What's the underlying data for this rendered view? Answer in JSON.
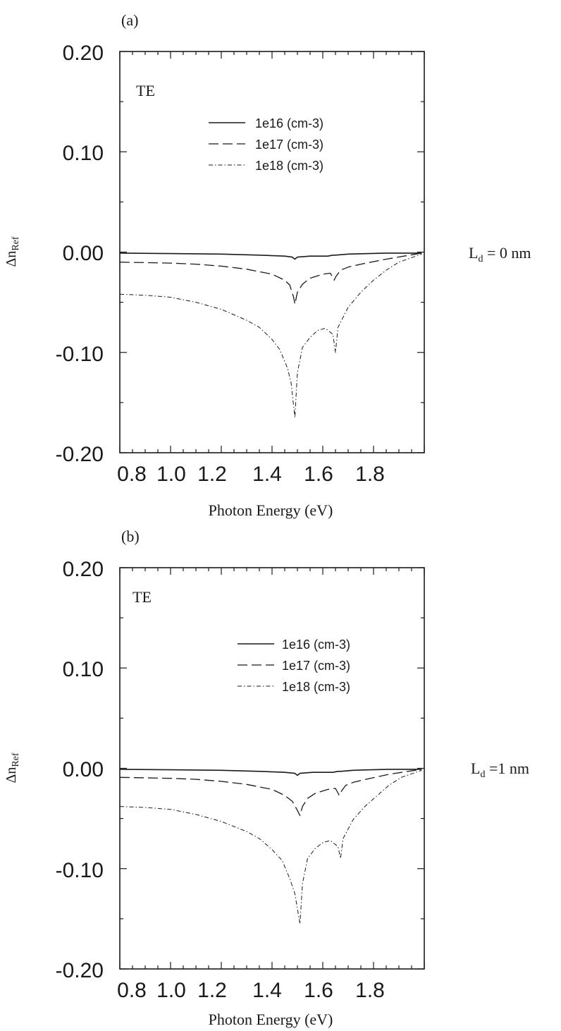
{
  "colors": {
    "ink": "#1a1a1a",
    "background": "#ffffff"
  },
  "chart_data": [
    {
      "type": "line",
      "panel_label": "(a)",
      "annotation": "TE",
      "side_label": {
        "main": "L",
        "sub": "d",
        "rest": " = 0 nm"
      },
      "xlabel": "Photon Energy (eV)",
      "ylabel": {
        "main": "Δn",
        "sub": "Ref"
      },
      "xlim": [
        0.8,
        2.0
      ],
      "ylim": [
        -0.2,
        0.2
      ],
      "x_ticks": [
        "0.8",
        "1.0",
        "1.2",
        "1.4",
        "1.6",
        "1.8"
      ],
      "y_ticks": [
        "0.20",
        "0.10",
        "0.00",
        "-0.10",
        "-0.20"
      ],
      "grid": false,
      "legend_position": "upper-middle",
      "series": [
        {
          "name": "1e16 (cm-3)",
          "style": "solid",
          "x": [
            0.8,
            1.0,
            1.2,
            1.35,
            1.45,
            1.48,
            1.49,
            1.5,
            1.55,
            1.62,
            1.64,
            1.65,
            1.7,
            1.85,
            1.99
          ],
          "y": [
            -0.001,
            -0.0015,
            -0.002,
            -0.003,
            -0.004,
            -0.005,
            -0.007,
            -0.005,
            -0.004,
            -0.004,
            -0.003,
            -0.003,
            -0.002,
            -0.001,
            -0.001
          ]
        },
        {
          "name": "1e17 (cm-3)",
          "style": "dash",
          "x": [
            0.8,
            1.0,
            1.1,
            1.2,
            1.3,
            1.4,
            1.45,
            1.47,
            1.485,
            1.49,
            1.5,
            1.52,
            1.55,
            1.6,
            1.63,
            1.645,
            1.65,
            1.67,
            1.7,
            1.75,
            1.85,
            1.99
          ],
          "y": [
            -0.01,
            -0.011,
            -0.012,
            -0.014,
            -0.017,
            -0.022,
            -0.028,
            -0.033,
            -0.045,
            -0.052,
            -0.04,
            -0.032,
            -0.026,
            -0.022,
            -0.021,
            -0.028,
            -0.025,
            -0.018,
            -0.015,
            -0.012,
            -0.007,
            -0.001
          ]
        },
        {
          "name": "1e18 (cm-3)",
          "style": "dashdot",
          "x": [
            0.8,
            0.9,
            1.0,
            1.1,
            1.2,
            1.3,
            1.35,
            1.4,
            1.43,
            1.46,
            1.475,
            1.49,
            1.5,
            1.52,
            1.55,
            1.58,
            1.61,
            1.64,
            1.65,
            1.66,
            1.7,
            1.75,
            1.8,
            1.85,
            1.9,
            1.99
          ],
          "y": [
            -0.042,
            -0.043,
            -0.045,
            -0.05,
            -0.057,
            -0.068,
            -0.075,
            -0.087,
            -0.097,
            -0.115,
            -0.13,
            -0.165,
            -0.12,
            -0.095,
            -0.085,
            -0.078,
            -0.076,
            -0.082,
            -0.1,
            -0.075,
            -0.055,
            -0.04,
            -0.028,
            -0.018,
            -0.01,
            -0.002
          ]
        }
      ]
    },
    {
      "type": "line",
      "panel_label": "(b)",
      "annotation": "TE",
      "side_label": {
        "main": "L",
        "sub": "d",
        "rest": " =1 nm"
      },
      "xlabel": "Photon Energy (eV)",
      "ylabel": {
        "main": "Δn",
        "sub": "Ref"
      },
      "xlim": [
        0.8,
        2.0
      ],
      "ylim": [
        -0.2,
        0.2
      ],
      "x_ticks": [
        "0.8",
        "1.0",
        "1.2",
        "1.4",
        "1.6",
        "1.8"
      ],
      "y_ticks": [
        "0.20",
        "0.10",
        "0.00",
        "-0.10",
        "-0.20"
      ],
      "grid": false,
      "legend_position": "upper-right",
      "series": [
        {
          "name": "1e16 (cm-3)",
          "style": "solid",
          "x": [
            0.8,
            1.0,
            1.2,
            1.35,
            1.45,
            1.49,
            1.5,
            1.51,
            1.56,
            1.64,
            1.66,
            1.67,
            1.72,
            1.86,
            1.99
          ],
          "y": [
            -0.001,
            -0.0015,
            -0.002,
            -0.003,
            -0.004,
            -0.005,
            -0.007,
            -0.005,
            -0.004,
            -0.004,
            -0.003,
            -0.003,
            -0.002,
            -0.001,
            -0.001
          ]
        },
        {
          "name": "1e17 (cm-3)",
          "style": "dash",
          "x": [
            0.8,
            1.0,
            1.1,
            1.2,
            1.3,
            1.4,
            1.45,
            1.48,
            1.5,
            1.51,
            1.52,
            1.54,
            1.57,
            1.62,
            1.65,
            1.665,
            1.67,
            1.69,
            1.72,
            1.77,
            1.86,
            1.99
          ],
          "y": [
            -0.009,
            -0.01,
            -0.011,
            -0.013,
            -0.016,
            -0.021,
            -0.027,
            -0.033,
            -0.042,
            -0.047,
            -0.038,
            -0.03,
            -0.025,
            -0.021,
            -0.02,
            -0.027,
            -0.024,
            -0.017,
            -0.014,
            -0.011,
            -0.006,
            -0.001
          ]
        },
        {
          "name": "1e18 (cm-3)",
          "style": "dashdot",
          "x": [
            0.8,
            0.9,
            1.0,
            1.1,
            1.2,
            1.3,
            1.35,
            1.4,
            1.44,
            1.47,
            1.49,
            1.51,
            1.52,
            1.54,
            1.57,
            1.6,
            1.63,
            1.66,
            1.67,
            1.68,
            1.72,
            1.77,
            1.82,
            1.86,
            1.91,
            1.99
          ],
          "y": [
            -0.038,
            -0.039,
            -0.041,
            -0.046,
            -0.053,
            -0.063,
            -0.07,
            -0.081,
            -0.092,
            -0.11,
            -0.125,
            -0.155,
            -0.115,
            -0.09,
            -0.08,
            -0.074,
            -0.072,
            -0.078,
            -0.09,
            -0.07,
            -0.051,
            -0.037,
            -0.026,
            -0.017,
            -0.009,
            -0.002
          ]
        }
      ]
    }
  ]
}
